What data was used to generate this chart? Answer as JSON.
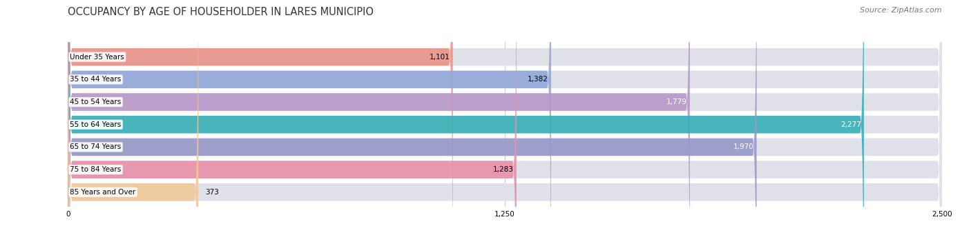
{
  "title": "OCCUPANCY BY AGE OF HOUSEHOLDER IN LARES MUNICIPIO",
  "source": "Source: ZipAtlas.com",
  "categories": [
    "Under 35 Years",
    "35 to 44 Years",
    "45 to 54 Years",
    "55 to 64 Years",
    "65 to 74 Years",
    "75 to 84 Years",
    "85 Years and Over"
  ],
  "values": [
    1101,
    1382,
    1779,
    2277,
    1970,
    1283,
    373
  ],
  "bar_colors": [
    "#e8948a",
    "#90a8d8",
    "#b898c8",
    "#38b0b8",
    "#9898c8",
    "#e890a8",
    "#f0c898"
  ],
  "bar_bg_color": "#e0e0e8",
  "value_text_colors": [
    "black",
    "black",
    "white",
    "white",
    "white",
    "black",
    "black"
  ],
  "xlim": [
    0,
    2500
  ],
  "xticks": [
    0,
    1250,
    2500
  ],
  "xtick_labels": [
    "0",
    "1,250",
    "2,500"
  ],
  "title_fontsize": 10.5,
  "source_fontsize": 8,
  "label_fontsize": 7.5,
  "value_fontsize": 7.5,
  "bar_height": 0.78,
  "bar_gap": 0.22,
  "background_color": "#ffffff",
  "label_bg_color": "#ffffff",
  "label_bg_alpha": 0.9,
  "rounding_size": 10
}
